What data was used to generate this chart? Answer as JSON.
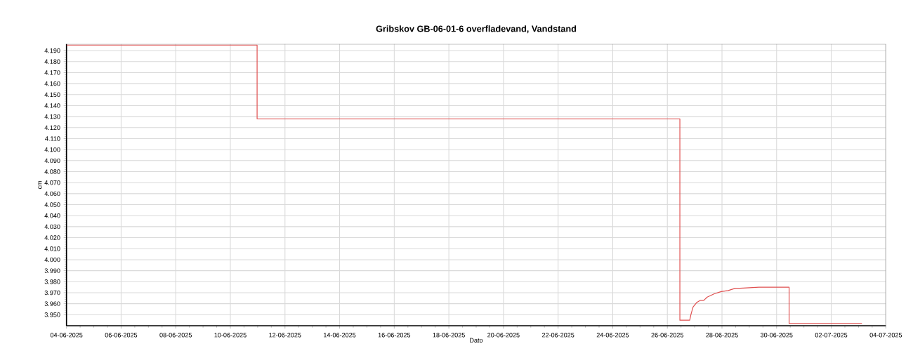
{
  "chart_data": {
    "type": "line",
    "title": "Gribskov GB-06-01-6 overfladevand, Vandstand",
    "xlabel": "Dato",
    "ylabel": "cm",
    "xlim": [
      "2025-06-04",
      "2025-07-04"
    ],
    "xticks": [
      {
        "value": "2025-06-04",
        "label": "04-06-2025"
      },
      {
        "value": "2025-06-06",
        "label": "06-06-2025"
      },
      {
        "value": "2025-06-08",
        "label": "08-06-2025"
      },
      {
        "value": "2025-06-10",
        "label": "10-06-2025"
      },
      {
        "value": "2025-06-12",
        "label": "12-06-2025"
      },
      {
        "value": "2025-06-14",
        "label": "14-06-2025"
      },
      {
        "value": "2025-06-16",
        "label": "16-06-2025"
      },
      {
        "value": "2025-06-18",
        "label": "18-06-2025"
      },
      {
        "value": "2025-06-20",
        "label": "20-06-2025"
      },
      {
        "value": "2025-06-22",
        "label": "22-06-2025"
      },
      {
        "value": "2025-06-24",
        "label": "24-06-2025"
      },
      {
        "value": "2025-06-26",
        "label": "26-06-2025"
      },
      {
        "value": "2025-06-28",
        "label": "28-06-2025"
      },
      {
        "value": "2025-06-30",
        "label": "30-06-2025"
      },
      {
        "value": "2025-07-02",
        "label": "02-07-2025"
      },
      {
        "value": "2025-07-04",
        "label": "04-07-2025"
      }
    ],
    "ylim": [
      3.94,
      4.196
    ],
    "yticks": [
      {
        "value": 3.95,
        "label": "3.950"
      },
      {
        "value": 3.96,
        "label": "3.960"
      },
      {
        "value": 3.97,
        "label": "3.970"
      },
      {
        "value": 3.98,
        "label": "3.980"
      },
      {
        "value": 3.99,
        "label": "3.990"
      },
      {
        "value": 4.0,
        "label": "4.000"
      },
      {
        "value": 4.01,
        "label": "4.010"
      },
      {
        "value": 4.02,
        "label": "4.020"
      },
      {
        "value": 4.03,
        "label": "4.030"
      },
      {
        "value": 4.04,
        "label": "4.040"
      },
      {
        "value": 4.05,
        "label": "4.050"
      },
      {
        "value": 4.06,
        "label": "4.060"
      },
      {
        "value": 4.07,
        "label": "4.070"
      },
      {
        "value": 4.08,
        "label": "4.080"
      },
      {
        "value": 4.09,
        "label": "4.090"
      },
      {
        "value": 4.1,
        "label": "4.100"
      },
      {
        "value": 4.11,
        "label": "4.110"
      },
      {
        "value": 4.12,
        "label": "4.120"
      },
      {
        "value": 4.13,
        "label": "4.130"
      },
      {
        "value": 4.14,
        "label": "4.140"
      },
      {
        "value": 4.15,
        "label": "4.150"
      },
      {
        "value": 4.16,
        "label": "4.160"
      },
      {
        "value": 4.17,
        "label": "4.170"
      },
      {
        "value": 4.18,
        "label": "4.180"
      },
      {
        "value": 4.19,
        "label": "4.190"
      }
    ],
    "grid": true,
    "series": [
      {
        "color": "#e05050",
        "x": [
          "2025-06-04T00:00",
          "2025-06-10T23:30",
          "2025-06-10T23:30",
          "2025-06-26T11:00",
          "2025-06-26T11:00",
          "2025-06-26T19:40",
          "2025-06-26T20:40",
          "2025-06-26T22:35",
          "2025-06-27T01:40",
          "2025-06-27T04:50",
          "2025-06-27T08:00",
          "2025-06-27T11:00",
          "2025-06-27T17:15",
          "2025-06-27T23:20",
          "2025-06-28T05:30",
          "2025-06-28T11:45",
          "2025-06-28T15:50",
          "2025-06-29T08:25",
          "2025-06-30T11:00",
          "2025-06-30T11:00",
          "2025-07-03T03:00"
        ],
        "values": [
          4.195,
          4.195,
          4.128,
          4.128,
          3.945,
          3.945,
          3.95,
          3.957,
          3.961,
          3.963,
          3.963,
          3.966,
          3.969,
          3.971,
          3.972,
          3.974,
          3.974,
          3.975,
          3.975,
          3.942,
          3.942
        ]
      }
    ]
  }
}
